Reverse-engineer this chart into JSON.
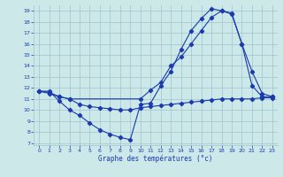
{
  "xlabel": "Graphe des températures (°c)",
  "bg_color": "#cce8e8",
  "line_color": "#1a3aad",
  "grid_color": "#a0c4cc",
  "xlim": [
    -0.5,
    23.5
  ],
  "ylim": [
    6.8,
    19.5
  ],
  "xticks": [
    0,
    1,
    2,
    3,
    4,
    5,
    6,
    7,
    8,
    9,
    10,
    11,
    12,
    13,
    14,
    15,
    16,
    17,
    18,
    19,
    20,
    21,
    22,
    23
  ],
  "yticks": [
    7,
    8,
    9,
    10,
    11,
    12,
    13,
    14,
    15,
    16,
    17,
    18,
    19
  ],
  "line1_x": [
    0,
    1,
    2,
    3,
    4,
    5,
    6,
    7,
    8,
    9,
    10,
    11,
    12,
    13,
    14,
    15,
    16,
    17,
    18,
    19,
    20,
    21,
    22,
    23
  ],
  "line1_y": [
    11.7,
    11.7,
    10.8,
    10.0,
    9.5,
    8.8,
    8.2,
    7.8,
    7.5,
    7.3,
    10.5,
    10.6,
    12.2,
    13.5,
    15.5,
    17.2,
    18.3,
    19.2,
    19.0,
    18.8,
    16.0,
    12.2,
    11.2,
    11.2
  ],
  "line1_markers_x": [
    0,
    1,
    2,
    3,
    4,
    5,
    6,
    7,
    8,
    9,
    10,
    11,
    12,
    13,
    14,
    15,
    16,
    17,
    18,
    19,
    20,
    21,
    22,
    23
  ],
  "line1_markers_y": [
    11.7,
    11.7,
    10.8,
    10.0,
    9.5,
    8.8,
    8.2,
    7.8,
    7.5,
    7.3,
    10.5,
    10.6,
    12.2,
    13.5,
    15.5,
    17.2,
    18.3,
    19.2,
    19.0,
    18.8,
    16.0,
    12.2,
    11.2,
    11.2
  ],
  "line2_x": [
    0,
    1,
    2,
    3,
    4,
    5,
    6,
    7,
    8,
    9,
    10,
    11,
    12,
    13,
    14,
    15,
    16,
    17,
    18,
    19,
    20,
    21,
    22,
    23
  ],
  "line2_y": [
    11.7,
    11.5,
    11.2,
    11.0,
    10.5,
    10.3,
    10.2,
    10.1,
    10.0,
    10.0,
    10.2,
    10.3,
    10.4,
    10.5,
    10.6,
    10.7,
    10.8,
    10.9,
    11.0,
    11.0,
    11.0,
    11.0,
    11.1,
    11.1
  ],
  "line3_x": [
    0,
    1,
    2,
    3,
    10,
    11,
    12,
    13,
    14,
    15,
    16,
    17,
    18,
    19,
    20,
    21,
    22,
    23
  ],
  "line3_y": [
    11.7,
    11.6,
    11.2,
    11.0,
    11.0,
    11.8,
    12.5,
    14.0,
    14.8,
    16.0,
    17.2,
    18.4,
    19.0,
    18.7,
    16.0,
    13.5,
    11.5,
    11.2
  ]
}
